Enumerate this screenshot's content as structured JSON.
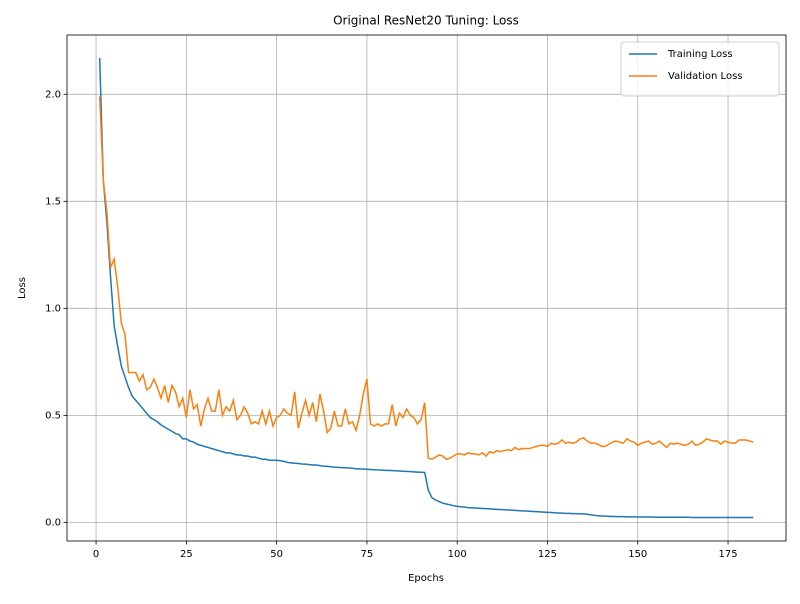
{
  "chart_data": {
    "type": "line",
    "title": "Original ResNet20 Tuning: Loss",
    "xlabel": "Epochs",
    "ylabel": "Loss",
    "x": [
      1,
      2,
      3,
      4,
      5,
      6,
      7,
      8,
      9,
      10,
      11,
      12,
      13,
      14,
      15,
      16,
      17,
      18,
      19,
      20,
      21,
      22,
      23,
      24,
      25,
      26,
      27,
      28,
      29,
      30,
      31,
      32,
      33,
      34,
      35,
      36,
      37,
      38,
      39,
      40,
      41,
      42,
      43,
      44,
      45,
      46,
      47,
      48,
      49,
      50,
      51,
      52,
      53,
      54,
      55,
      56,
      57,
      58,
      59,
      60,
      61,
      62,
      63,
      64,
      65,
      66,
      67,
      68,
      69,
      70,
      71,
      72,
      73,
      74,
      75,
      76,
      77,
      78,
      79,
      80,
      81,
      82,
      83,
      84,
      85,
      86,
      87,
      88,
      89,
      90,
      91,
      92,
      93,
      94,
      95,
      96,
      97,
      98,
      99,
      100,
      101,
      102,
      103,
      104,
      105,
      106,
      107,
      108,
      109,
      110,
      111,
      112,
      113,
      114,
      115,
      116,
      117,
      118,
      119,
      120,
      121,
      122,
      123,
      124,
      125,
      126,
      127,
      128,
      129,
      130,
      131,
      132,
      133,
      134,
      135,
      136,
      137,
      138,
      139,
      140,
      141,
      142,
      143,
      144,
      145,
      146,
      147,
      148,
      149,
      150,
      151,
      152,
      153,
      154,
      155,
      156,
      157,
      158,
      159,
      160,
      161,
      162,
      163,
      164,
      165,
      166,
      167,
      168,
      169,
      170,
      171,
      172,
      173,
      174,
      175,
      176,
      177,
      178,
      179,
      180,
      181,
      182
    ],
    "series": [
      {
        "name": "Training Loss",
        "color": "#1f77b4",
        "values": [
          2.17,
          1.6,
          1.4,
          1.15,
          0.92,
          0.82,
          0.73,
          0.68,
          0.63,
          0.59,
          0.57,
          0.55,
          0.53,
          0.51,
          0.49,
          0.48,
          0.47,
          0.455,
          0.445,
          0.435,
          0.425,
          0.415,
          0.41,
          0.39,
          0.39,
          0.38,
          0.375,
          0.365,
          0.36,
          0.355,
          0.35,
          0.345,
          0.34,
          0.335,
          0.33,
          0.325,
          0.325,
          0.32,
          0.315,
          0.315,
          0.31,
          0.31,
          0.305,
          0.305,
          0.3,
          0.295,
          0.295,
          0.29,
          0.29,
          0.29,
          0.288,
          0.285,
          0.28,
          0.278,
          0.276,
          0.275,
          0.273,
          0.272,
          0.27,
          0.268,
          0.268,
          0.265,
          0.263,
          0.262,
          0.26,
          0.258,
          0.257,
          0.256,
          0.255,
          0.254,
          0.253,
          0.25,
          0.25,
          0.249,
          0.248,
          0.247,
          0.246,
          0.245,
          0.244,
          0.243,
          0.243,
          0.242,
          0.241,
          0.24,
          0.239,
          0.238,
          0.237,
          0.236,
          0.235,
          0.234,
          0.233,
          0.15,
          0.115,
          0.105,
          0.097,
          0.09,
          0.086,
          0.082,
          0.078,
          0.075,
          0.073,
          0.071,
          0.069,
          0.068,
          0.067,
          0.066,
          0.065,
          0.064,
          0.063,
          0.062,
          0.061,
          0.06,
          0.059,
          0.058,
          0.057,
          0.056,
          0.055,
          0.054,
          0.053,
          0.052,
          0.051,
          0.05,
          0.049,
          0.048,
          0.047,
          0.046,
          0.045,
          0.044,
          0.043,
          0.042,
          0.042,
          0.041,
          0.041,
          0.04,
          0.04,
          0.038,
          0.035,
          0.033,
          0.031,
          0.03,
          0.029,
          0.028,
          0.028,
          0.027,
          0.027,
          0.027,
          0.026,
          0.026,
          0.026,
          0.025,
          0.025,
          0.025,
          0.025,
          0.025,
          0.024,
          0.024,
          0.024,
          0.024,
          0.024,
          0.024,
          0.024,
          0.024,
          0.024,
          0.024,
          0.023,
          0.023,
          0.023,
          0.023,
          0.023,
          0.023,
          0.023,
          0.023,
          0.023,
          0.023,
          0.023,
          0.023,
          0.023,
          0.023,
          0.023,
          0.023,
          0.023,
          0.023
        ]
      },
      {
        "name": "Validation Loss",
        "color": "#ff7f0e",
        "values": [
          1.99,
          1.6,
          1.45,
          1.19,
          1.23,
          1.1,
          0.93,
          0.88,
          0.7,
          0.7,
          0.7,
          0.66,
          0.69,
          0.62,
          0.63,
          0.67,
          0.63,
          0.58,
          0.64,
          0.56,
          0.64,
          0.61,
          0.54,
          0.58,
          0.49,
          0.62,
          0.53,
          0.55,
          0.45,
          0.53,
          0.58,
          0.52,
          0.52,
          0.62,
          0.5,
          0.54,
          0.52,
          0.57,
          0.48,
          0.5,
          0.54,
          0.51,
          0.46,
          0.47,
          0.46,
          0.52,
          0.46,
          0.52,
          0.45,
          0.49,
          0.5,
          0.53,
          0.51,
          0.5,
          0.61,
          0.44,
          0.51,
          0.57,
          0.5,
          0.56,
          0.47,
          0.6,
          0.52,
          0.42,
          0.44,
          0.52,
          0.45,
          0.45,
          0.53,
          0.46,
          0.47,
          0.43,
          0.5,
          0.6,
          0.67,
          0.46,
          0.45,
          0.46,
          0.45,
          0.46,
          0.46,
          0.55,
          0.45,
          0.51,
          0.49,
          0.53,
          0.5,
          0.49,
          0.46,
          0.48,
          0.56,
          0.3,
          0.295,
          0.305,
          0.315,
          0.31,
          0.295,
          0.3,
          0.31,
          0.32,
          0.32,
          0.315,
          0.325,
          0.32,
          0.32,
          0.315,
          0.325,
          0.31,
          0.33,
          0.325,
          0.335,
          0.33,
          0.335,
          0.34,
          0.335,
          0.35,
          0.34,
          0.345,
          0.345,
          0.345,
          0.35,
          0.355,
          0.36,
          0.36,
          0.355,
          0.37,
          0.365,
          0.37,
          0.385,
          0.37,
          0.375,
          0.37,
          0.375,
          0.39,
          0.395,
          0.38,
          0.37,
          0.37,
          0.365,
          0.355,
          0.355,
          0.365,
          0.375,
          0.38,
          0.375,
          0.37,
          0.39,
          0.38,
          0.375,
          0.36,
          0.37,
          0.375,
          0.38,
          0.365,
          0.37,
          0.38,
          0.365,
          0.35,
          0.37,
          0.365,
          0.37,
          0.365,
          0.36,
          0.365,
          0.38,
          0.36,
          0.365,
          0.375,
          0.39,
          0.385,
          0.38,
          0.38,
          0.365,
          0.38,
          0.375,
          0.37,
          0.37,
          0.385,
          0.385,
          0.385,
          0.38,
          0.375
        ]
      }
    ],
    "xlim": [
      -8.05,
      191.05
    ],
    "xticks": [
      0,
      25,
      50,
      75,
      100,
      125,
      150,
      175
    ],
    "ylim": [
      -0.087,
      2.277
    ],
    "yticks": [
      {
        "value": 0,
        "label": "0.0"
      },
      0.5,
      {
        "value": 1,
        "label": "1.0"
      },
      1.5,
      {
        "value": 2,
        "label": "2.0"
      }
    ],
    "grid": true,
    "legend": "upper right"
  }
}
